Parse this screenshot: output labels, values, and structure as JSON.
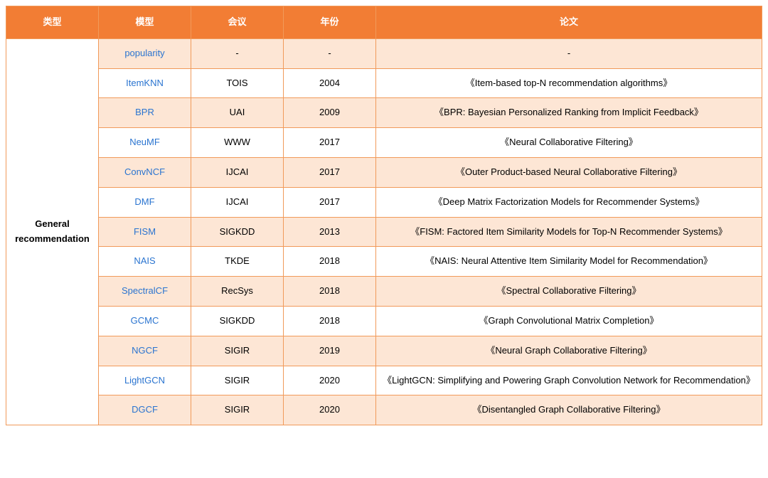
{
  "table": {
    "header_bg": "#f27d34",
    "header_fg": "#ffffff",
    "border_color": "#f19a5a",
    "row_odd_bg": "#fde6d5",
    "row_even_bg": "#ffffff",
    "link_color": "#2a74d0",
    "columns": {
      "type": "类型",
      "model": "模型",
      "conf": "会议",
      "year": "年份",
      "paper": "论文"
    },
    "category_label": "General recommendation",
    "rows": [
      {
        "model": "popularity",
        "conf": "-",
        "year": "-",
        "paper": "-"
      },
      {
        "model": "ItemKNN",
        "conf": "TOIS",
        "year": "2004",
        "paper": "《Item-based top-N recommendation algorithms》"
      },
      {
        "model": "BPR",
        "conf": "UAI",
        "year": "2009",
        "paper": "《BPR: Bayesian Personalized Ranking from Implicit Feedback》"
      },
      {
        "model": "NeuMF",
        "conf": "WWW",
        "year": "2017",
        "paper": "《Neural Collaborative Filtering》"
      },
      {
        "model": "ConvNCF",
        "conf": "IJCAI",
        "year": "2017",
        "paper": "《Outer Product-based Neural Collaborative Filtering》"
      },
      {
        "model": "DMF",
        "conf": "IJCAI",
        "year": "2017",
        "paper": "《Deep Matrix Factorization Models for Recommender Systems》"
      },
      {
        "model": "FISM",
        "conf": "SIGKDD",
        "year": "2013",
        "paper": "《FISM: Factored Item Similarity Models for Top-N Recommender Systems》"
      },
      {
        "model": "NAIS",
        "conf": "TKDE",
        "year": "2018",
        "paper": "《NAIS: Neural Attentive Item Similarity Model for Recommendation》"
      },
      {
        "model": "SpectralCF",
        "conf": "RecSys",
        "year": "2018",
        "paper": "《Spectral Collaborative Filtering》"
      },
      {
        "model": "GCMC",
        "conf": "SIGKDD",
        "year": "2018",
        "paper": "《Graph Convolutional Matrix Completion》"
      },
      {
        "model": "NGCF",
        "conf": "SIGIR",
        "year": "2019",
        "paper": "《Neural Graph Collaborative Filtering》"
      },
      {
        "model": "LightGCN",
        "conf": "SIGIR",
        "year": "2020",
        "paper": "《LightGCN: Simplifying and Powering Graph Convolution Network for Recommendation》"
      },
      {
        "model": "DGCF",
        "conf": "SIGIR",
        "year": "2020",
        "paper": "《Disentangled Graph Collaborative Filtering》"
      }
    ]
  }
}
